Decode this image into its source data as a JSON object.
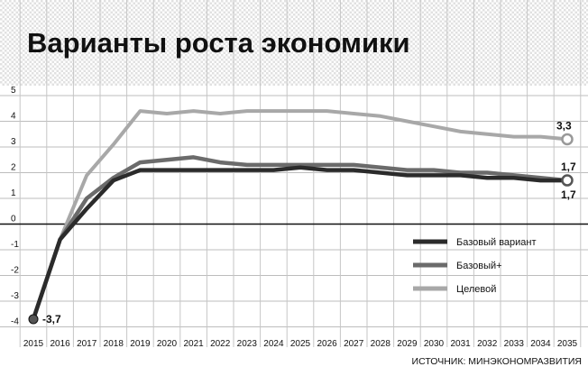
{
  "chart_data": {
    "type": "line",
    "title": "Варианты роста экономики",
    "source": "ИСТОЧНИК: МИНЭКОНОМРАЗВИТИЯ",
    "x": [
      "2015",
      "2016",
      "2017",
      "2018",
      "2019",
      "2020",
      "2021",
      "2022",
      "2023",
      "2024",
      "2025",
      "2026",
      "2027",
      "2028",
      "2029",
      "2030",
      "2031",
      "2032",
      "2033",
      "2034",
      "2035"
    ],
    "y_ticks": [
      "5",
      "4",
      "3",
      "2",
      "1",
      "0",
      "-1",
      "-2",
      "-3",
      "-4"
    ],
    "ylim": [
      -4,
      5
    ],
    "grid": true,
    "legend_position": "bottom-right",
    "series": [
      {
        "name": "Базовый вариант",
        "color": "#2b2b2b",
        "values": [
          -3.7,
          -0.6,
          0.6,
          1.7,
          2.1,
          2.1,
          2.1,
          2.1,
          2.1,
          2.1,
          2.2,
          2.1,
          2.1,
          2.0,
          1.9,
          1.9,
          1.9,
          1.8,
          1.8,
          1.7,
          1.7
        ]
      },
      {
        "name": "Базовый+",
        "color": "#6b6b6b",
        "values": [
          -3.7,
          -0.6,
          1.0,
          1.8,
          2.4,
          2.5,
          2.6,
          2.4,
          2.3,
          2.3,
          2.3,
          2.3,
          2.3,
          2.2,
          2.1,
          2.1,
          2.0,
          2.0,
          1.9,
          1.8,
          1.7
        ]
      },
      {
        "name": "Целевой",
        "color": "#a8a8a8",
        "values": [
          -3.7,
          -0.6,
          1.9,
          3.1,
          4.4,
          4.3,
          4.4,
          4.3,
          4.4,
          4.4,
          4.4,
          4.4,
          4.3,
          4.2,
          4.0,
          3.8,
          3.6,
          3.5,
          3.4,
          3.4,
          3.3
        ]
      }
    ],
    "annotations": {
      "start": "-3,7",
      "target_end": "3,3",
      "baseplus_end": "1,7",
      "base_end": "1,7"
    }
  }
}
